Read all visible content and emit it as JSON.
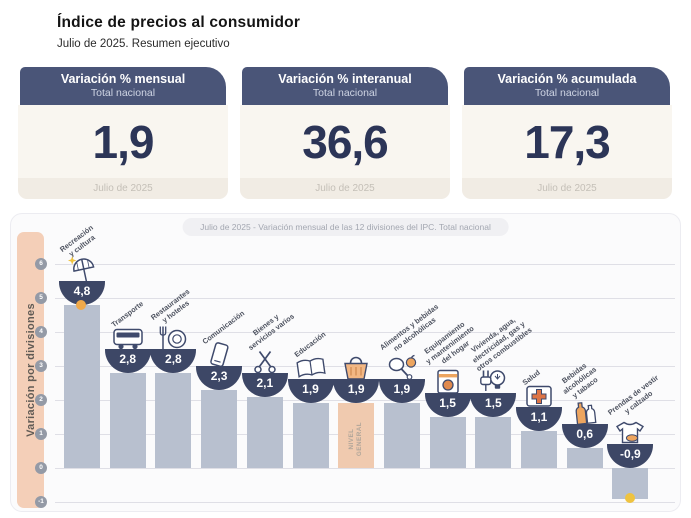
{
  "header": {
    "title": "Índice de precios al consumidor",
    "subtitle": "Julio de 2025. Resumen ejecutivo"
  },
  "cards": [
    {
      "title": "Variación % mensual",
      "subtitle": "Total nacional",
      "value": "1,9",
      "period": "Julio de 2025"
    },
    {
      "title": "Variación % interanual",
      "subtitle": "Total nacional",
      "value": "36,6",
      "period": "Julio de 2025"
    },
    {
      "title": "Variación % acumulada",
      "subtitle": "Total nacional",
      "value": "17,3",
      "period": "Julio de 2025"
    }
  ],
  "chart_data": {
    "type": "bar",
    "title": "Julio de 2025 - Variación mensual de las 12 divisiones del IPC. Total nacional",
    "ylabel": "Variación por divisiones",
    "xlabel": "",
    "ylim": [
      -1,
      6
    ],
    "y_ticks": [
      6,
      5,
      4,
      3,
      2,
      1,
      0,
      -1
    ],
    "grid": true,
    "legend": "none",
    "value_format": "comma-decimal",
    "bars": [
      {
        "label": "Recreación\ny cultura",
        "value": 4.8,
        "display": "4,8",
        "icon": "beach-umbrella-icon",
        "highlight": false,
        "decor": "sun"
      },
      {
        "label": "Transporte",
        "value": 2.8,
        "display": "2,8",
        "icon": "bus-icon",
        "highlight": false
      },
      {
        "label": "Restaurantes\ny hoteles",
        "value": 2.8,
        "display": "2,8",
        "icon": "restaurant-icon",
        "highlight": false
      },
      {
        "label": "Comunicación",
        "value": 2.3,
        "display": "2,3",
        "icon": "smartphone-icon",
        "highlight": false
      },
      {
        "label": "Bienes y\nservicios varios",
        "value": 2.1,
        "display": "2,1",
        "icon": "scissors-icon",
        "highlight": false
      },
      {
        "label": "Educación",
        "value": 1.9,
        "display": "1,9",
        "icon": "book-icon",
        "highlight": false
      },
      {
        "label": "",
        "bar_text": "NIVEL\nGENERAL",
        "value": 1.9,
        "display": "1,9",
        "icon": "shopping-basket-icon",
        "highlight": true
      },
      {
        "label": "Alimentos y bebidas\nno alcohólicas",
        "value": 1.9,
        "display": "1,9",
        "icon": "food-icon",
        "highlight": false
      },
      {
        "label": "Equipamiento\ny mantenimiento\ndel hogar",
        "value": 1.5,
        "display": "1,5",
        "icon": "washing-machine-icon",
        "highlight": false
      },
      {
        "label": "Vivienda, agua,\nelectricidad, gas y\notros combustibles",
        "value": 1.5,
        "display": "1,5",
        "icon": "lightbulb-plug-icon",
        "highlight": false
      },
      {
        "label": "Salud",
        "value": 1.1,
        "display": "1,1",
        "icon": "first-aid-icon",
        "highlight": false
      },
      {
        "label": "Bebidas\nalcohólicas\ny tabaco",
        "value": 0.6,
        "display": "0,6",
        "icon": "bottles-icon",
        "highlight": false
      },
      {
        "label": "Prendas de vestir\ny calzado",
        "value": -0.9,
        "display": "-0,9",
        "icon": "tshirt-icon",
        "highlight": false,
        "decor": "dot"
      }
    ],
    "colors": {
      "bar": "#b8c0cf",
      "highlight_bar": "#f0caaf",
      "badge_navy": "#3d4766",
      "header_navy": "#4a5578",
      "value_navy": "#2c3557",
      "peach_strip": "#f4cfb8",
      "accent_orange": "#eda55f",
      "accent_yellow": "#efc33f"
    }
  }
}
